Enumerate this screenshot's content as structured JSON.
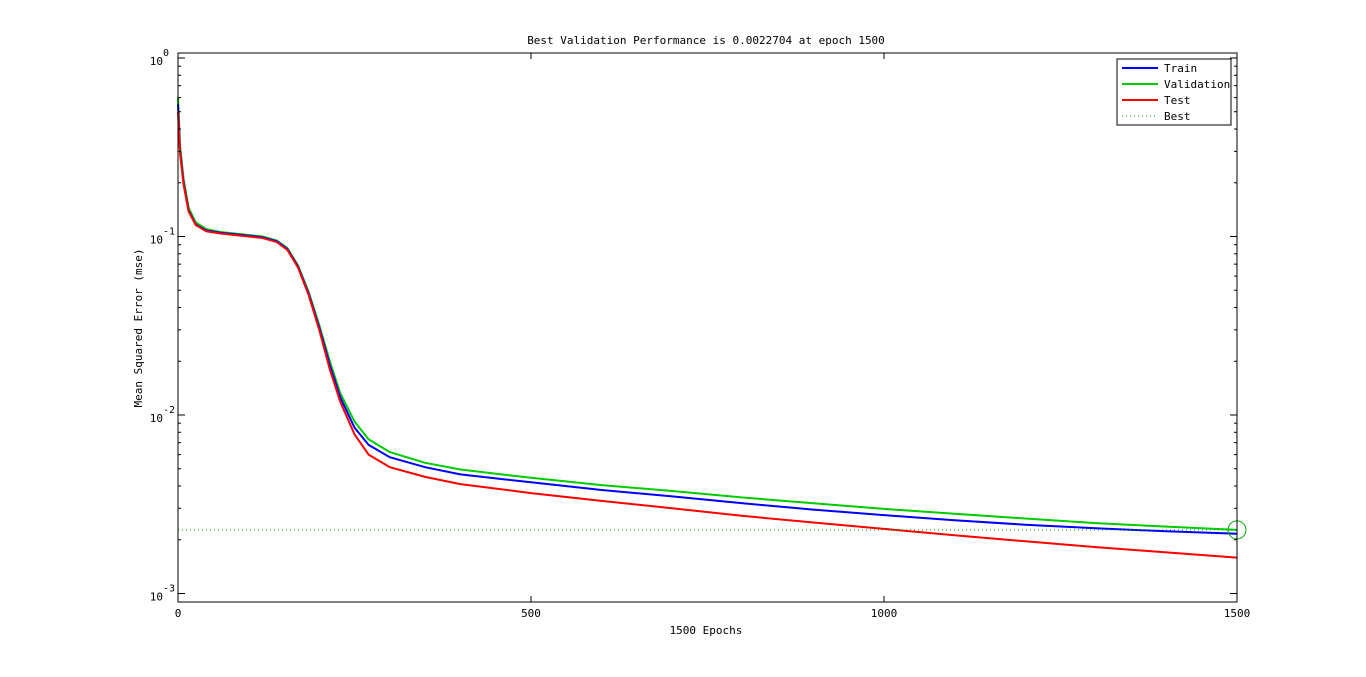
{
  "chart_data": {
    "type": "line",
    "title": "Best Validation Performance is 0.0022704 at epoch 1500",
    "xlabel": "1500 Epochs",
    "ylabel": "Mean Squared Error  (mse)",
    "x_scale": "linear",
    "y_scale": "log",
    "xlim": [
      0,
      1500
    ],
    "ylim": [
      0.0009,
      1
    ],
    "x_ticks": [
      0,
      500,
      1000,
      1500
    ],
    "y_ticks": [
      {
        "value": 1,
        "base": "10",
        "exp": "0"
      },
      {
        "value": 0.1,
        "base": "10",
        "exp": "-1"
      },
      {
        "value": 0.01,
        "base": "10",
        "exp": "-2"
      },
      {
        "value": 0.001,
        "base": "10",
        "exp": "-3"
      }
    ],
    "grid": false,
    "legend_position": "top-right",
    "best": {
      "epoch": 1500,
      "value": 0.0022704
    },
    "series": [
      {
        "name": "Train",
        "color": "#0000ff",
        "points": [
          [
            0,
            0.55
          ],
          [
            3,
            0.3
          ],
          [
            8,
            0.2
          ],
          [
            15,
            0.14
          ],
          [
            25,
            0.117
          ],
          [
            40,
            0.108
          ],
          [
            60,
            0.105
          ],
          [
            80,
            0.103
          ],
          [
            100,
            0.101
          ],
          [
            120,
            0.099
          ],
          [
            140,
            0.094
          ],
          [
            155,
            0.085
          ],
          [
            170,
            0.068
          ],
          [
            185,
            0.048
          ],
          [
            200,
            0.031
          ],
          [
            215,
            0.019
          ],
          [
            230,
            0.0125
          ],
          [
            250,
            0.0085
          ],
          [
            270,
            0.0068
          ],
          [
            300,
            0.0058
          ],
          [
            350,
            0.0051
          ],
          [
            400,
            0.00465
          ],
          [
            500,
            0.0042
          ],
          [
            600,
            0.0038
          ],
          [
            700,
            0.0035
          ],
          [
            800,
            0.0032
          ],
          [
            900,
            0.00295
          ],
          [
            1000,
            0.00275
          ],
          [
            1100,
            0.00257
          ],
          [
            1200,
            0.00243
          ],
          [
            1300,
            0.00232
          ],
          [
            1400,
            0.00223
          ],
          [
            1500,
            0.00216
          ]
        ]
      },
      {
        "name": "Validation",
        "color": "#00cc00",
        "points": [
          [
            0,
            0.6
          ],
          [
            3,
            0.32
          ],
          [
            8,
            0.21
          ],
          [
            15,
            0.145
          ],
          [
            25,
            0.12
          ],
          [
            40,
            0.11
          ],
          [
            60,
            0.106
          ],
          [
            80,
            0.104
          ],
          [
            100,
            0.102
          ],
          [
            120,
            0.1
          ],
          [
            140,
            0.095
          ],
          [
            155,
            0.086
          ],
          [
            170,
            0.069
          ],
          [
            185,
            0.049
          ],
          [
            200,
            0.032
          ],
          [
            215,
            0.02
          ],
          [
            230,
            0.0132
          ],
          [
            250,
            0.0092
          ],
          [
            270,
            0.0073
          ],
          [
            300,
            0.0062
          ],
          [
            350,
            0.0054
          ],
          [
            400,
            0.00495
          ],
          [
            500,
            0.00445
          ],
          [
            600,
            0.00405
          ],
          [
            700,
            0.00375
          ],
          [
            800,
            0.00345
          ],
          [
            900,
            0.0032
          ],
          [
            1000,
            0.00298
          ],
          [
            1100,
            0.0028
          ],
          [
            1200,
            0.00263
          ],
          [
            1300,
            0.00248
          ],
          [
            1400,
            0.00237
          ],
          [
            1500,
            0.0022704
          ]
        ]
      },
      {
        "name": "Test",
        "color": "#ff0000",
        "points": [
          [
            0,
            0.5
          ],
          [
            3,
            0.29
          ],
          [
            8,
            0.195
          ],
          [
            15,
            0.138
          ],
          [
            25,
            0.116
          ],
          [
            40,
            0.107
          ],
          [
            60,
            0.104
          ],
          [
            80,
            0.102
          ],
          [
            100,
            0.1
          ],
          [
            120,
            0.098
          ],
          [
            140,
            0.093
          ],
          [
            155,
            0.084
          ],
          [
            170,
            0.067
          ],
          [
            185,
            0.047
          ],
          [
            200,
            0.03
          ],
          [
            215,
            0.018
          ],
          [
            230,
            0.0118
          ],
          [
            250,
            0.0078
          ],
          [
            270,
            0.006
          ],
          [
            300,
            0.0051
          ],
          [
            350,
            0.0045
          ],
          [
            400,
            0.0041
          ],
          [
            500,
            0.00365
          ],
          [
            600,
            0.0033
          ],
          [
            700,
            0.003
          ],
          [
            800,
            0.00272
          ],
          [
            900,
            0.0025
          ],
          [
            1000,
            0.0023
          ],
          [
            1100,
            0.00212
          ],
          [
            1200,
            0.00196
          ],
          [
            1300,
            0.00182
          ],
          [
            1400,
            0.0017
          ],
          [
            1500,
            0.00159
          ]
        ]
      }
    ],
    "legend": [
      {
        "label": "Train",
        "color": "#0000ff",
        "style": "solid"
      },
      {
        "label": "Validation",
        "color": "#00cc00",
        "style": "solid"
      },
      {
        "label": "Test",
        "color": "#ff0000",
        "style": "solid"
      },
      {
        "label": "Best",
        "color": "#00aa00",
        "style": "dotted"
      }
    ]
  }
}
